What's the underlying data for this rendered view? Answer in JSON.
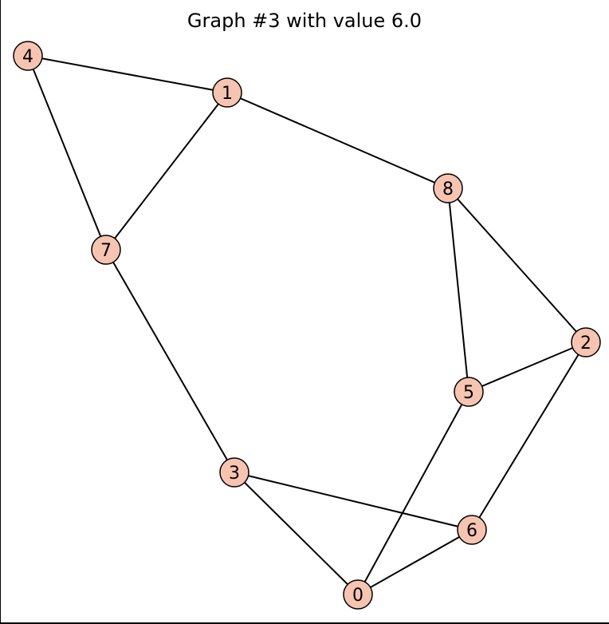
{
  "title": "Graph #3 with value 6.0",
  "style": {
    "node_fill": "#f7c4b2",
    "node_stroke": "#000000",
    "edge_color": "#000000"
  },
  "nodes": [
    {
      "id": "0",
      "label": "0"
    },
    {
      "id": "1",
      "label": "1"
    },
    {
      "id": "2",
      "label": "2"
    },
    {
      "id": "3",
      "label": "3"
    },
    {
      "id": "4",
      "label": "4"
    },
    {
      "id": "5",
      "label": "5"
    },
    {
      "id": "6",
      "label": "6"
    },
    {
      "id": "7",
      "label": "7"
    },
    {
      "id": "8",
      "label": "8"
    }
  ],
  "edges": [
    [
      "4",
      "1"
    ],
    [
      "4",
      "7"
    ],
    [
      "1",
      "7"
    ],
    [
      "1",
      "8"
    ],
    [
      "8",
      "5"
    ],
    [
      "8",
      "2"
    ],
    [
      "2",
      "5"
    ],
    [
      "2",
      "6"
    ],
    [
      "7",
      "3"
    ],
    [
      "3",
      "6"
    ],
    [
      "3",
      "0"
    ],
    [
      "5",
      "0"
    ],
    [
      "6",
      "0"
    ]
  ]
}
